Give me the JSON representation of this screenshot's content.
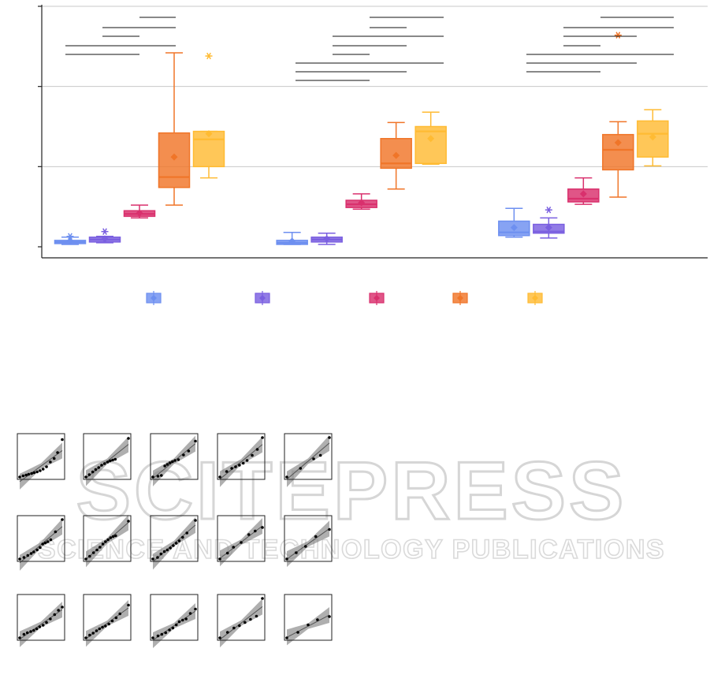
{
  "watermark": {
    "line1": "SCITEPRESS",
    "line2": "SCIENCE AND TECHNOLOGY PUBLICATIONS"
  },
  "chart_data": [
    {
      "type": "box",
      "title": "",
      "xlabel": "",
      "ylabel": "",
      "ylim": [
        0,
        3
      ],
      "grid": true,
      "legend": "bottom",
      "categories": [
        "",
        "",
        ""
      ],
      "series": [
        {
          "color": "#6d8ff0",
          "groups": [
            {
              "whislo": 0.03,
              "q1": 0.04,
              "med": 0.06,
              "q3": 0.08,
              "whishi": 0.12,
              "mean": 0.07,
              "fliers": [
                0.13
              ]
            },
            {
              "whislo": 0.03,
              "q1": 0.03,
              "med": 0.05,
              "q3": 0.08,
              "whishi": 0.18,
              "mean": 0.07,
              "fliers": []
            },
            {
              "whislo": 0.12,
              "q1": 0.14,
              "med": 0.18,
              "q3": 0.32,
              "whishi": 0.48,
              "mean": 0.24,
              "fliers": []
            }
          ]
        },
        {
          "color": "#7a5fe0",
          "groups": [
            {
              "whislo": 0.05,
              "q1": 0.06,
              "med": 0.09,
              "q3": 0.12,
              "whishi": 0.13,
              "mean": 0.1,
              "fliers": [
                0.19
              ]
            },
            {
              "whislo": 0.03,
              "q1": 0.06,
              "med": 0.09,
              "q3": 0.12,
              "whishi": 0.17,
              "mean": 0.1,
              "fliers": []
            },
            {
              "whislo": 0.11,
              "q1": 0.17,
              "med": 0.19,
              "q3": 0.28,
              "whishi": 0.36,
              "mean": 0.24,
              "fliers": [
                0.46
              ]
            }
          ]
        },
        {
          "color": "#d9306d",
          "groups": [
            {
              "whislo": 0.36,
              "q1": 0.38,
              "med": 0.41,
              "q3": 0.45,
              "whishi": 0.52,
              "mean": 0.42,
              "fliers": []
            },
            {
              "whislo": 0.47,
              "q1": 0.49,
              "med": 0.53,
              "q3": 0.58,
              "whishi": 0.66,
              "mean": 0.55,
              "fliers": []
            },
            {
              "whislo": 0.53,
              "q1": 0.56,
              "med": 0.6,
              "q3": 0.72,
              "whishi": 0.86,
              "mean": 0.66,
              "fliers": []
            }
          ]
        },
        {
          "color": "#f07528",
          "groups": [
            {
              "whislo": 0.52,
              "q1": 0.74,
              "med": 0.87,
              "q3": 1.42,
              "whishi": 2.42,
              "mean": 1.12,
              "fliers": []
            },
            {
              "whislo": 0.72,
              "q1": 0.98,
              "med": 1.04,
              "q3": 1.35,
              "whishi": 1.55,
              "mean": 1.14,
              "fliers": []
            },
            {
              "whislo": 0.62,
              "q1": 0.96,
              "med": 1.21,
              "q3": 1.4,
              "whishi": 1.56,
              "mean": 1.3,
              "fliers": [
                2.64
              ]
            }
          ]
        },
        {
          "color": "#ffbb33",
          "groups": [
            {
              "whislo": 0.86,
              "q1": 1.0,
              "med": 1.34,
              "q3": 1.44,
              "whishi": 1.44,
              "mean": 1.41,
              "fliers": [
                2.38
              ]
            },
            {
              "whislo": 1.03,
              "q1": 1.04,
              "med": 1.44,
              "q3": 1.5,
              "whishi": 1.68,
              "mean": 1.35,
              "fliers": []
            },
            {
              "whislo": 1.01,
              "q1": 1.12,
              "med": 1.41,
              "q3": 1.57,
              "whishi": 1.71,
              "mean": 1.37,
              "fliers": []
            }
          ]
        }
      ]
    },
    {
      "type": "scatter",
      "title": "",
      "xlabel": "",
      "ylabel": "",
      "grid": false,
      "panels": [
        {
          "points": [
            [
              0.0,
              0.0
            ],
            [
              0.08,
              0.03
            ],
            [
              0.15,
              0.05
            ],
            [
              0.21,
              0.07
            ],
            [
              0.28,
              0.09
            ],
            [
              0.34,
              0.11
            ],
            [
              0.41,
              0.13
            ],
            [
              0.48,
              0.16
            ],
            [
              0.55,
              0.2
            ],
            [
              0.63,
              0.26
            ],
            [
              0.72,
              0.38
            ],
            [
              0.81,
              0.47
            ],
            [
              0.89,
              0.62
            ],
            [
              1.0,
              0.95
            ]
          ]
        },
        {
          "points": [
            [
              0.0,
              0.0
            ],
            [
              0.08,
              0.06
            ],
            [
              0.16,
              0.13
            ],
            [
              0.23,
              0.19
            ],
            [
              0.3,
              0.24
            ],
            [
              0.37,
              0.3
            ],
            [
              0.44,
              0.34
            ],
            [
              0.51,
              0.38
            ],
            [
              0.57,
              0.41
            ],
            [
              0.63,
              0.43
            ],
            [
              0.69,
              0.45
            ],
            [
              1.0,
              0.98
            ]
          ]
        },
        {
          "points": [
            [
              0.0,
              0.0
            ],
            [
              0.12,
              0.02
            ],
            [
              0.2,
              0.04
            ],
            [
              0.28,
              0.28
            ],
            [
              0.34,
              0.32
            ],
            [
              0.4,
              0.36
            ],
            [
              0.46,
              0.39
            ],
            [
              0.52,
              0.42
            ],
            [
              0.6,
              0.44
            ],
            [
              0.72,
              0.56
            ],
            [
              0.84,
              0.66
            ],
            [
              1.0,
              0.91
            ]
          ]
        },
        {
          "points": [
            [
              0.0,
              0.0
            ],
            [
              0.16,
              0.14
            ],
            [
              0.28,
              0.22
            ],
            [
              0.37,
              0.26
            ],
            [
              0.46,
              0.3
            ],
            [
              0.55,
              0.35
            ],
            [
              0.64,
              0.42
            ],
            [
              0.76,
              0.55
            ],
            [
              0.88,
              0.7
            ],
            [
              1.0,
              1.0
            ]
          ]
        },
        {
          "points": [
            [
              0.0,
              0.0
            ],
            [
              0.32,
              0.22
            ],
            [
              0.63,
              0.46
            ],
            [
              0.79,
              0.55
            ],
            [
              1.0,
              1.0
            ]
          ]
        },
        {
          "points": [
            [
              0.0,
              0.0
            ],
            [
              0.1,
              0.04
            ],
            [
              0.19,
              0.09
            ],
            [
              0.27,
              0.14
            ],
            [
              0.33,
              0.18
            ],
            [
              0.41,
              0.23
            ],
            [
              0.48,
              0.29
            ],
            [
              0.54,
              0.38
            ],
            [
              0.6,
              0.41
            ],
            [
              0.66,
              0.44
            ],
            [
              0.73,
              0.49
            ],
            [
              0.84,
              0.69
            ],
            [
              1.0,
              1.0
            ]
          ]
        },
        {
          "points": [
            [
              0.0,
              0.0
            ],
            [
              0.09,
              0.07
            ],
            [
              0.18,
              0.16
            ],
            [
              0.26,
              0.23
            ],
            [
              0.33,
              0.3
            ],
            [
              0.4,
              0.38
            ],
            [
              0.46,
              0.44
            ],
            [
              0.52,
              0.49
            ],
            [
              0.58,
              0.54
            ],
            [
              0.64,
              0.57
            ],
            [
              0.7,
              0.59
            ],
            [
              1.0,
              0.96
            ]
          ]
        },
        {
          "points": [
            [
              0.0,
              0.0
            ],
            [
              0.11,
              0.04
            ],
            [
              0.19,
              0.13
            ],
            [
              0.27,
              0.19
            ],
            [
              0.34,
              0.23
            ],
            [
              0.41,
              0.28
            ],
            [
              0.48,
              0.34
            ],
            [
              0.55,
              0.4
            ],
            [
              0.62,
              0.46
            ],
            [
              0.7,
              0.55
            ],
            [
              0.8,
              0.66
            ],
            [
              1.0,
              0.98
            ]
          ]
        },
        {
          "points": [
            [
              0.0,
              0.0
            ],
            [
              0.18,
              0.15
            ],
            [
              0.32,
              0.3
            ],
            [
              0.5,
              0.42
            ],
            [
              0.68,
              0.62
            ],
            [
              0.83,
              0.71
            ],
            [
              1.0,
              0.8
            ]
          ]
        },
        {
          "points": [
            [
              0.0,
              0.0
            ],
            [
              0.22,
              0.16
            ],
            [
              0.44,
              0.32
            ],
            [
              0.68,
              0.57
            ],
            [
              1.0,
              0.75
            ]
          ]
        },
        {
          "points": [
            [
              0.0,
              0.0
            ],
            [
              0.1,
              0.09
            ],
            [
              0.18,
              0.13
            ],
            [
              0.26,
              0.16
            ],
            [
              0.33,
              0.19
            ],
            [
              0.4,
              0.23
            ],
            [
              0.47,
              0.28
            ],
            [
              0.55,
              0.32
            ],
            [
              0.63,
              0.39
            ],
            [
              0.72,
              0.48
            ],
            [
              0.82,
              0.59
            ],
            [
              0.91,
              0.7
            ],
            [
              1.0,
              0.78
            ]
          ]
        },
        {
          "points": [
            [
              0.0,
              0.0
            ],
            [
              0.09,
              0.07
            ],
            [
              0.17,
              0.12
            ],
            [
              0.25,
              0.18
            ],
            [
              0.32,
              0.23
            ],
            [
              0.39,
              0.27
            ],
            [
              0.46,
              0.3
            ],
            [
              0.54,
              0.35
            ],
            [
              0.62,
              0.43
            ],
            [
              0.71,
              0.51
            ],
            [
              0.8,
              0.61
            ],
            [
              1.0,
              0.83
            ]
          ]
        },
        {
          "points": [
            [
              0.0,
              0.0
            ],
            [
              0.12,
              0.05
            ],
            [
              0.21,
              0.09
            ],
            [
              0.3,
              0.13
            ],
            [
              0.39,
              0.2
            ],
            [
              0.47,
              0.25
            ],
            [
              0.55,
              0.33
            ],
            [
              0.62,
              0.41
            ],
            [
              0.7,
              0.45
            ],
            [
              0.78,
              0.48
            ],
            [
              0.88,
              0.62
            ],
            [
              1.0,
              0.73
            ]
          ]
        },
        {
          "points": [
            [
              0.0,
              0.0
            ],
            [
              0.18,
              0.14
            ],
            [
              0.33,
              0.25
            ],
            [
              0.46,
              0.31
            ],
            [
              0.59,
              0.39
            ],
            [
              0.72,
              0.47
            ],
            [
              0.86,
              0.55
            ],
            [
              1.0,
              1.0
            ]
          ]
        },
        {
          "points": [
            [
              0.0,
              0.0
            ],
            [
              0.26,
              0.14
            ],
            [
              0.5,
              0.33
            ],
            [
              0.72,
              0.46
            ],
            [
              1.0,
              0.54
            ]
          ]
        }
      ]
    }
  ]
}
